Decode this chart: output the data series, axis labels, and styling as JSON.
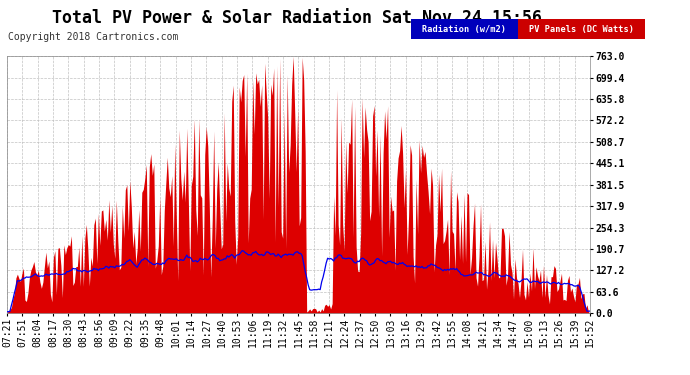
{
  "title": "Total PV Power & Solar Radiation Sat Nov 24 15:56",
  "copyright": "Copyright 2018 Cartronics.com",
  "legend_radiation": "Radiation (w/m2)",
  "legend_pv": "PV Panels (DC Watts)",
  "background_color": "#ffffff",
  "plot_bg_color": "#ffffff",
  "grid_color": "#bbbbbb",
  "y_max": 763.0,
  "y_min": 0.0,
  "y_ticks": [
    0.0,
    63.6,
    127.2,
    190.7,
    254.3,
    317.9,
    381.5,
    445.1,
    508.7,
    572.2,
    635.8,
    699.4,
    763.0
  ],
  "x_labels": [
    "07:21",
    "07:51",
    "08:04",
    "08:17",
    "08:30",
    "08:43",
    "08:56",
    "09:09",
    "09:22",
    "09:35",
    "09:48",
    "10:01",
    "10:14",
    "10:27",
    "10:40",
    "10:53",
    "11:06",
    "11:19",
    "11:32",
    "11:45",
    "11:58",
    "12:11",
    "12:24",
    "12:37",
    "12:50",
    "13:03",
    "13:16",
    "13:29",
    "13:42",
    "13:55",
    "14:08",
    "14:21",
    "14:34",
    "14:47",
    "15:00",
    "15:13",
    "15:26",
    "15:39",
    "15:52"
  ],
  "pv_color": "#dd0000",
  "radiation_color": "#0000ee",
  "title_fontsize": 12,
  "tick_fontsize": 7,
  "copyright_fontsize": 7
}
